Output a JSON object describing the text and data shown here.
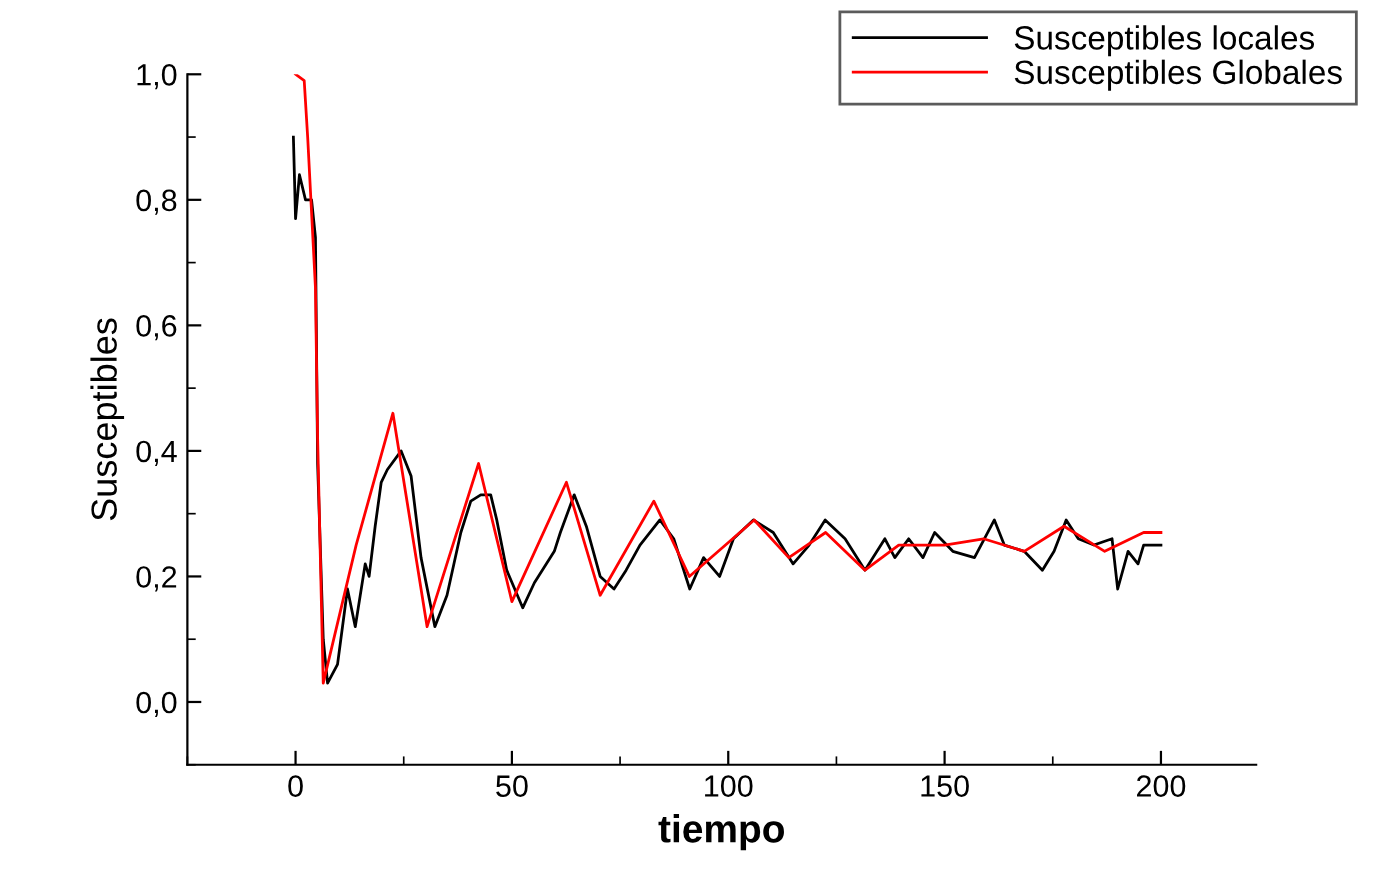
{
  "chart_data": {
    "type": "line",
    "xlabel": "tiempo",
    "ylabel": "Susceptibles",
    "xlim": [
      -25,
      222
    ],
    "ylim": [
      -0.1,
      1.0
    ],
    "xticks": [
      0,
      50,
      100,
      150,
      200
    ],
    "yticks": [
      {
        "value": 0,
        "label": "0,0"
      },
      {
        "value": 0.2,
        "label": "0,2"
      },
      {
        "value": 0.4,
        "label": "0,4"
      },
      {
        "value": 0.6,
        "label": "0,6"
      },
      {
        "value": 0.8,
        "label": "0,8"
      },
      {
        "value": 1.0,
        "label": "1,0"
      }
    ],
    "grid": false,
    "legend": "top right",
    "marker": "none",
    "line_style": "solid",
    "series": [
      {
        "name": "Susceptibles locales",
        "color": "#000000",
        "x": [
          -0.5,
          0,
          0.9,
          2.3,
          3.7,
          4.6,
          5.1,
          6.4,
          7.4,
          9.7,
          12,
          13.8,
          16.1,
          17,
          18.4,
          19.8,
          21.2,
          24.4,
          26.7,
          29,
          32.2,
          35,
          38.2,
          40.5,
          42.8,
          45.1,
          46.5,
          48.8,
          52.5,
          55.2,
          59.8,
          61.2,
          64.4,
          67.2,
          70.4,
          73.6,
          76.4,
          79.6,
          84.2,
          87.4,
          91.1,
          94.3,
          98,
          101.2,
          105.8,
          110.4,
          115,
          118.7,
          122.4,
          127,
          131.6,
          136.2,
          138.5,
          141.7,
          145,
          147.7,
          151.9,
          156.9,
          161.5,
          163.8,
          168.4,
          172.6,
          175.3,
          178.1,
          180.9,
          184.5,
          188.7,
          190,
          192.4,
          194.7,
          196,
          200
        ],
        "values": [
          0.9,
          0.77,
          0.84,
          0.8,
          0.8,
          0.74,
          0.38,
          0.1,
          0.03,
          0.06,
          0.18,
          0.12,
          0.22,
          0.2,
          0.28,
          0.35,
          0.37,
          0.4,
          0.36,
          0.23,
          0.12,
          0.17,
          0.27,
          0.32,
          0.33,
          0.33,
          0.29,
          0.21,
          0.15,
          0.19,
          0.24,
          0.27,
          0.33,
          0.28,
          0.2,
          0.18,
          0.21,
          0.25,
          0.29,
          0.26,
          0.18,
          0.23,
          0.2,
          0.26,
          0.29,
          0.27,
          0.22,
          0.25,
          0.29,
          0.26,
          0.21,
          0.26,
          0.23,
          0.26,
          0.23,
          0.27,
          0.24,
          0.23,
          0.29,
          0.25,
          0.24,
          0.21,
          0.24,
          0.29,
          0.26,
          0.25,
          0.26,
          0.18,
          0.24,
          0.22,
          0.25,
          0.25
        ]
      },
      {
        "name": "Susceptibles Globales",
        "color": "#ff0000",
        "x": [
          0,
          2,
          2.8,
          4.6,
          5.1,
          6.4,
          14,
          22.5,
          30.4,
          42.3,
          50,
          62.6,
          70.4,
          82.8,
          91,
          106,
          114,
          122.5,
          131.6,
          139.4,
          150,
          159,
          168.4,
          177.6,
          187,
          196,
          200
        ],
        "values": [
          1.0,
          0.99,
          0.9,
          0.66,
          0.42,
          0.03,
          0.25,
          0.46,
          0.12,
          0.38,
          0.16,
          0.35,
          0.17,
          0.32,
          0.2,
          0.29,
          0.23,
          0.27,
          0.21,
          0.25,
          0.25,
          0.26,
          0.24,
          0.28,
          0.24,
          0.27,
          0.27
        ]
      }
    ]
  }
}
